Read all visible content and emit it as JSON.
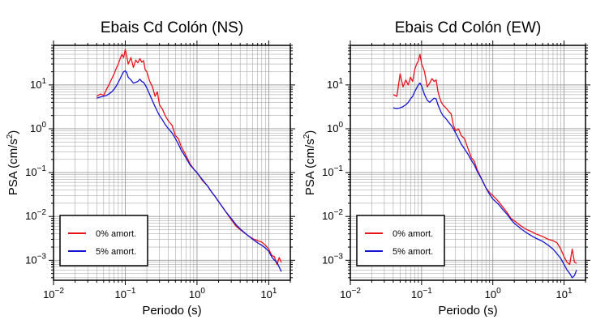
{
  "colors": {
    "undamped": "#e8121b",
    "damped": "#1414d2",
    "grid": "#9a9a9a",
    "axis": "#000000"
  },
  "chart_data": [
    {
      "type": "line",
      "title": "Ebais Cd Colón (NS)",
      "xlabel": "Periodo (s)",
      "ylabel_main": "PSA (cm/s",
      "ylabel_sup": "2",
      "ylabel_tail": ")",
      "xscale": "log",
      "yscale": "log",
      "xlim": [
        0.01,
        20
      ],
      "ylim": [
        0.00035,
        80
      ],
      "xticks": [
        {
          "value": 0.01,
          "base": "10",
          "exp": "−2"
        },
        {
          "value": 0.1,
          "base": "10",
          "exp": "−1"
        },
        {
          "value": 1,
          "base": "10",
          "exp": "0"
        },
        {
          "value": 10,
          "base": "10",
          "exp": "1"
        }
      ],
      "yticks": [
        {
          "value": 0.001,
          "base": "10",
          "exp": "−3"
        },
        {
          "value": 0.01,
          "base": "10",
          "exp": "−2"
        },
        {
          "value": 0.1,
          "base": "10",
          "exp": "−1"
        },
        {
          "value": 1,
          "base": "10",
          "exp": "0"
        },
        {
          "value": 10,
          "base": "10",
          "exp": "1"
        }
      ],
      "grid": true,
      "legend_position": "bottom-left",
      "series": [
        {
          "name": "0% amort.",
          "color": "#e8121b",
          "x": [
            0.04,
            0.045,
            0.05,
            0.055,
            0.06,
            0.065,
            0.07,
            0.075,
            0.08,
            0.085,
            0.09,
            0.095,
            0.1,
            0.105,
            0.11,
            0.12,
            0.13,
            0.14,
            0.15,
            0.16,
            0.17,
            0.18,
            0.19,
            0.2,
            0.22,
            0.24,
            0.26,
            0.28,
            0.3,
            0.33,
            0.36,
            0.4,
            0.45,
            0.5,
            0.55,
            0.6,
            0.7,
            0.8,
            0.9,
            1.0,
            1.2,
            1.4,
            1.6,
            1.8,
            2.0,
            2.5,
            3.0,
            3.5,
            4.0,
            5.0,
            6.0,
            7.0,
            8.0,
            9.0,
            10.0,
            11.0,
            12.0,
            13.0,
            14.0,
            15.0
          ],
          "y": [
            5.5,
            6.2,
            5.8,
            8.0,
            10.5,
            14.0,
            18.0,
            24.0,
            30.0,
            40.0,
            50.0,
            42.0,
            65.0,
            45.0,
            30.0,
            42.0,
            25.0,
            37.0,
            32.0,
            40.0,
            33.0,
            36.0,
            22.0,
            20.0,
            12.0,
            9.0,
            5.5,
            7.0,
            3.5,
            2.8,
            2.0,
            1.5,
            1.2,
            0.7,
            0.6,
            0.4,
            0.25,
            0.16,
            0.12,
            0.1,
            0.065,
            0.05,
            0.036,
            0.028,
            0.022,
            0.013,
            0.0085,
            0.006,
            0.005,
            0.0038,
            0.0031,
            0.0028,
            0.0026,
            0.0022,
            0.0018,
            0.0013,
            0.0012,
            0.0008,
            0.00115,
            0.0009
          ]
        },
        {
          "name": "5% amort.",
          "color": "#1414d2",
          "x": [
            0.04,
            0.045,
            0.05,
            0.055,
            0.06,
            0.065,
            0.07,
            0.075,
            0.08,
            0.085,
            0.09,
            0.095,
            0.1,
            0.105,
            0.11,
            0.12,
            0.13,
            0.14,
            0.15,
            0.16,
            0.17,
            0.18,
            0.19,
            0.2,
            0.22,
            0.24,
            0.26,
            0.28,
            0.3,
            0.33,
            0.36,
            0.4,
            0.45,
            0.5,
            0.55,
            0.6,
            0.7,
            0.8,
            0.9,
            1.0,
            1.2,
            1.4,
            1.6,
            1.8,
            2.0,
            2.5,
            3.0,
            3.5,
            4.0,
            5.0,
            6.0,
            7.0,
            8.0,
            9.0,
            10.0,
            11.0,
            12.0,
            13.0,
            14.0,
            15.0
          ],
          "y": [
            5.0,
            5.3,
            5.5,
            5.8,
            6.3,
            7.0,
            8.0,
            9.5,
            11.5,
            14.0,
            17.0,
            20.0,
            21.0,
            19.0,
            15.0,
            13.0,
            11.0,
            11.5,
            12.0,
            13.5,
            12.0,
            11.5,
            10.0,
            8.5,
            6.0,
            4.3,
            3.2,
            2.5,
            2.0,
            1.6,
            1.25,
            1.0,
            0.8,
            0.6,
            0.45,
            0.33,
            0.22,
            0.15,
            0.12,
            0.1,
            0.068,
            0.05,
            0.036,
            0.028,
            0.022,
            0.013,
            0.009,
            0.0065,
            0.0052,
            0.0038,
            0.003,
            0.0025,
            0.0022,
            0.0019,
            0.0016,
            0.0012,
            0.001,
            0.0009,
            0.0007,
            0.00055
          ]
        }
      ]
    },
    {
      "type": "line",
      "title": "Ebais Cd Colón (EW)",
      "xlabel": "Periodo (s)",
      "ylabel_main": "PSA (cm/s",
      "ylabel_sup": "2",
      "ylabel_tail": ")",
      "xscale": "log",
      "yscale": "log",
      "xlim": [
        0.01,
        20
      ],
      "ylim": [
        0.00035,
        80
      ],
      "xticks": [
        {
          "value": 0.01,
          "base": "10",
          "exp": "−2"
        },
        {
          "value": 0.1,
          "base": "10",
          "exp": "−1"
        },
        {
          "value": 1,
          "base": "10",
          "exp": "0"
        },
        {
          "value": 10,
          "base": "10",
          "exp": "1"
        }
      ],
      "yticks": [
        {
          "value": 0.001,
          "base": "10",
          "exp": "−3"
        },
        {
          "value": 0.01,
          "base": "10",
          "exp": "−2"
        },
        {
          "value": 0.1,
          "base": "10",
          "exp": "−1"
        },
        {
          "value": 1,
          "base": "10",
          "exp": "0"
        },
        {
          "value": 10,
          "base": "10",
          "exp": "1"
        }
      ],
      "grid": true,
      "legend_position": "bottom-left",
      "series": [
        {
          "name": "0% amort.",
          "color": "#e8121b",
          "x": [
            0.04,
            0.045,
            0.05,
            0.055,
            0.06,
            0.065,
            0.07,
            0.075,
            0.08,
            0.085,
            0.09,
            0.095,
            0.1,
            0.105,
            0.11,
            0.12,
            0.13,
            0.14,
            0.15,
            0.16,
            0.17,
            0.18,
            0.19,
            0.2,
            0.22,
            0.24,
            0.26,
            0.28,
            0.3,
            0.33,
            0.36,
            0.4,
            0.45,
            0.5,
            0.55,
            0.6,
            0.7,
            0.8,
            0.9,
            1.0,
            1.2,
            1.4,
            1.6,
            1.8,
            2.0,
            2.5,
            3.0,
            3.5,
            4.0,
            5.0,
            6.0,
            7.0,
            8.0,
            9.0,
            10.0,
            11.0,
            12.0,
            13.0,
            14.0,
            15.0
          ],
          "y": [
            6.0,
            5.5,
            18.0,
            9.0,
            13.0,
            10.0,
            15.0,
            12.0,
            22.0,
            30.0,
            35.0,
            50.0,
            30.0,
            25.0,
            20.0,
            9.0,
            11.0,
            14.0,
            12.0,
            13.0,
            7.0,
            5.0,
            4.0,
            3.5,
            3.0,
            2.5,
            2.2,
            1.2,
            0.9,
            1.0,
            0.7,
            0.6,
            0.35,
            0.22,
            0.18,
            0.12,
            0.07,
            0.045,
            0.035,
            0.03,
            0.022,
            0.016,
            0.012,
            0.009,
            0.008,
            0.006,
            0.005,
            0.0045,
            0.004,
            0.0035,
            0.003,
            0.0028,
            0.0025,
            0.0018,
            0.0012,
            0.0009,
            0.0008,
            0.0018,
            0.0009,
            0.00085
          ]
        },
        {
          "name": "5% amort.",
          "color": "#1414d2",
          "x": [
            0.04,
            0.045,
            0.05,
            0.055,
            0.06,
            0.065,
            0.07,
            0.075,
            0.08,
            0.085,
            0.09,
            0.095,
            0.1,
            0.105,
            0.11,
            0.12,
            0.13,
            0.14,
            0.15,
            0.16,
            0.17,
            0.18,
            0.19,
            0.2,
            0.22,
            0.24,
            0.26,
            0.28,
            0.3,
            0.33,
            0.36,
            0.4,
            0.45,
            0.5,
            0.55,
            0.6,
            0.7,
            0.8,
            0.9,
            1.0,
            1.2,
            1.4,
            1.6,
            1.8,
            2.0,
            2.5,
            3.0,
            3.5,
            4.0,
            5.0,
            6.0,
            7.0,
            8.0,
            9.0,
            10.0,
            11.0,
            12.0,
            13.0,
            14.0,
            15.0
          ],
          "y": [
            3.0,
            2.9,
            3.0,
            3.2,
            3.5,
            4.0,
            4.8,
            5.5,
            7.0,
            8.5,
            10.0,
            11.0,
            9.5,
            7.5,
            6.0,
            4.5,
            4.0,
            4.5,
            5.0,
            4.8,
            3.5,
            2.8,
            2.3,
            2.0,
            1.7,
            1.4,
            1.2,
            1.0,
            0.8,
            0.6,
            0.45,
            0.35,
            0.26,
            0.19,
            0.15,
            0.11,
            0.07,
            0.045,
            0.032,
            0.025,
            0.019,
            0.014,
            0.011,
            0.0085,
            0.007,
            0.0052,
            0.0042,
            0.0036,
            0.0032,
            0.0027,
            0.0022,
            0.0018,
            0.0014,
            0.0011,
            0.0008,
            0.0006,
            0.0005,
            0.0004,
            0.00045,
            0.0006
          ]
        }
      ]
    }
  ]
}
